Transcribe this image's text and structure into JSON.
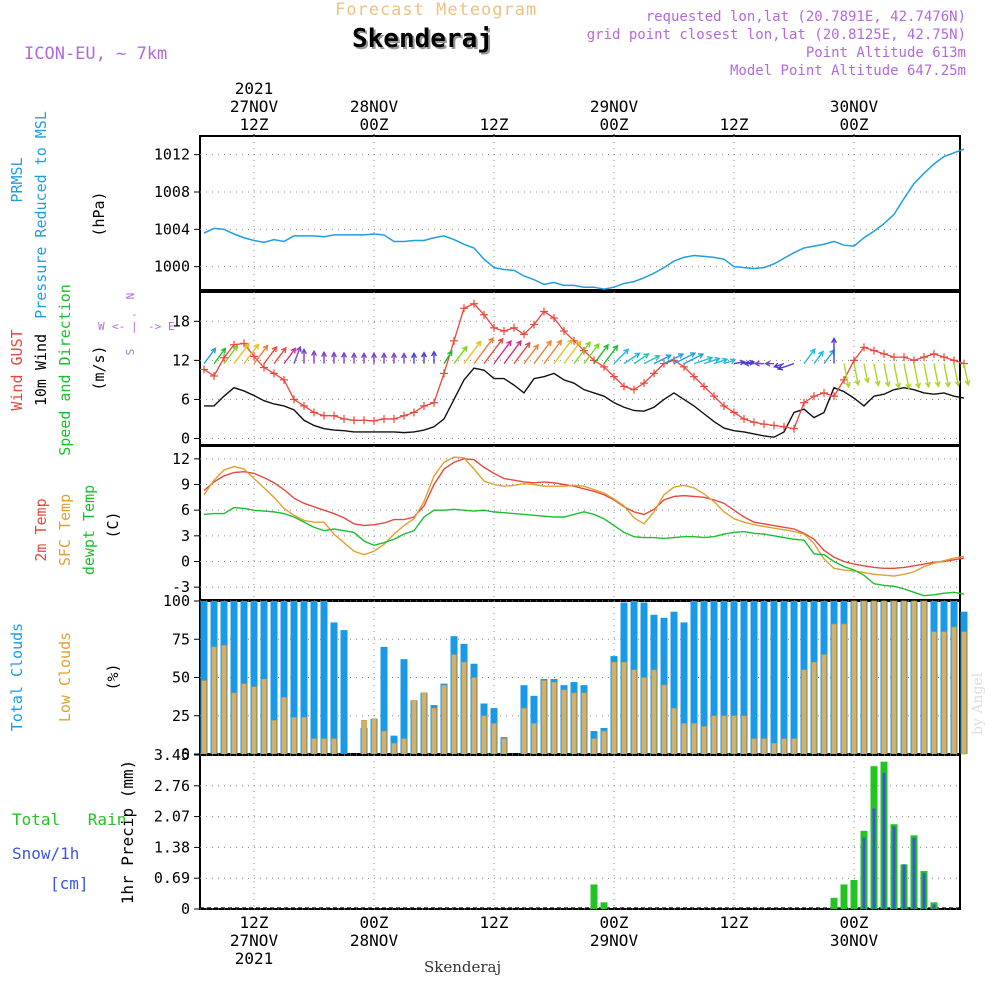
{
  "colors": {
    "frame": "#000000",
    "grid": "#888888",
    "pressure": "#1f9ee0",
    "gust": "#e8483e",
    "wind": "#111111",
    "temp2m": "#e8483e",
    "sfc": "#e0a030",
    "dewpt": "#19c02c",
    "total_clouds": "#1a9ae6",
    "low_clouds": "#d0b070",
    "low_clouds_edge": "#c09030",
    "rain": "#22c422",
    "snow": "#3c56d8",
    "title_orange": "#f0c080",
    "purple": "#b36ad9"
  },
  "header": {
    "title_small": "Forecast Meteogram",
    "title": "Skenderaj",
    "model": "ICON-EU, ~ 7km",
    "info": [
      "requested lon,lat (20.7891E, 42.7476N)",
      "grid point closest lon,lat (20.8125E, 42.75N)",
      "Point Altitude 613m",
      "Model Point Altitude 647.25m"
    ],
    "watermark": "by Angel",
    "footer": "Skenderaj"
  },
  "chart_data": [
    {
      "id": "pressure",
      "type": "line",
      "title": "PRMSL Pressure Reduced to MSL",
      "label_lines": [
        "PRMSL",
        "Pressure Reduced to MSL"
      ],
      "unit": "(hPa)",
      "ylim": [
        997.5,
        1014
      ],
      "yticks": [
        1000,
        1004,
        1008,
        1012
      ],
      "x_hours": [
        0,
        1,
        2,
        3,
        4,
        5,
        6,
        7,
        8,
        9,
        10,
        11,
        12,
        13,
        14,
        15,
        16,
        17,
        18,
        19,
        20,
        21,
        22,
        23,
        24,
        25,
        26,
        27,
        28,
        29,
        30,
        31,
        32,
        33,
        34,
        35,
        36,
        37,
        38,
        39,
        40,
        41,
        42,
        43,
        44,
        45,
        46,
        47,
        48,
        49,
        50,
        51,
        52,
        53,
        54,
        55,
        56,
        57,
        58,
        59,
        60,
        61,
        62,
        63,
        64,
        65,
        66,
        67,
        68,
        69,
        70,
        71,
        72,
        73,
        74,
        75,
        76
      ],
      "values": [
        1003.6,
        1004.1,
        1004.0,
        1003.5,
        1003.1,
        1002.8,
        1002.6,
        1002.9,
        1002.7,
        1003.3,
        1003.3,
        1003.3,
        1003.2,
        1003.4,
        1003.4,
        1003.4,
        1003.4,
        1003.5,
        1003.4,
        1002.7,
        1002.7,
        1002.8,
        1002.8,
        1003.1,
        1003.3,
        1002.9,
        1002.4,
        1002.0,
        1000.8,
        999.9,
        999.7,
        999.6,
        999.0,
        998.6,
        998.1,
        998.3,
        998.0,
        998.0,
        997.8,
        997.8,
        997.6,
        997.8,
        998.2,
        998.4,
        998.8,
        999.3,
        999.9,
        1000.6,
        1001.0,
        1001.2,
        1001.1,
        1001.0,
        1000.8,
        1000.0,
        999.9,
        999.8,
        999.9,
        1000.3,
        1000.9,
        1001.5,
        1002.0,
        1002.2,
        1002.4,
        1002.7,
        1002.3,
        1002.2,
        1003.1,
        1003.8,
        1004.6,
        1005.6,
        1007.3,
        1008.9,
        1010.0,
        1011.0,
        1011.8,
        1012.2,
        1012.6
      ]
    },
    {
      "id": "wind",
      "type": "line",
      "title": "Wind GUST / 10m Wind Speed and Direction",
      "label_lines": [
        "Wind GUST",
        "10m Wind",
        "Speed and Direction"
      ],
      "unit": "(m/s)",
      "compass": [
        "N",
        "W",
        "E",
        "S"
      ],
      "compass_arrows": [
        "<-",
        "->",
        "|",
        "-"
      ],
      "ylim": [
        -1,
        22.5
      ],
      "yticks": [
        0,
        6,
        12,
        18
      ],
      "x_hours": [
        0,
        1,
        2,
        3,
        4,
        5,
        6,
        7,
        8,
        9,
        10,
        11,
        12,
        13,
        14,
        15,
        16,
        17,
        18,
        19,
        20,
        21,
        22,
        23,
        24,
        25,
        26,
        27,
        28,
        29,
        30,
        31,
        32,
        33,
        34,
        35,
        36,
        37,
        38,
        39,
        40,
        41,
        42,
        43,
        44,
        45,
        46,
        47,
        48,
        49,
        50,
        51,
        52,
        53,
        54,
        55,
        56,
        57,
        58,
        59,
        60,
        61,
        62,
        63,
        64,
        65,
        66,
        67,
        68,
        69,
        70,
        71,
        72,
        73,
        74,
        75,
        76
      ],
      "gust": [
        10.6,
        9.6,
        12.4,
        14.4,
        14.6,
        12.6,
        10.9,
        10.0,
        9.0,
        6.0,
        5.0,
        4.0,
        3.5,
        3.5,
        3.0,
        2.8,
        2.8,
        2.7,
        3.0,
        3.0,
        3.5,
        4.0,
        5.0,
        5.5,
        10.0,
        15.0,
        20.0,
        20.7,
        19.0,
        17.0,
        16.5,
        17.0,
        16.0,
        17.5,
        19.5,
        18.5,
        16.5,
        15.0,
        13.5,
        12.0,
        11.0,
        9.5,
        8.0,
        7.5,
        8.5,
        10.0,
        11.5,
        12.0,
        11.0,
        9.5,
        8.0,
        6.5,
        5.0,
        4.0,
        3.0,
        2.5,
        2.2,
        2.0,
        1.8,
        1.5,
        5.5,
        6.5,
        7.0,
        6.5,
        9.0,
        12.0,
        14.0,
        13.5,
        13.0,
        12.5,
        12.5,
        12.0,
        12.5,
        13.0,
        12.5,
        12.0,
        11.5
      ],
      "wind": [
        5.0,
        5.0,
        6.5,
        7.8,
        7.3,
        6.6,
        5.8,
        5.3,
        5.0,
        4.4,
        2.8,
        2.0,
        1.5,
        1.3,
        1.2,
        1.0,
        1.0,
        1.0,
        1.0,
        1.0,
        0.9,
        1.0,
        1.3,
        1.8,
        3.0,
        6.0,
        9.0,
        10.8,
        10.5,
        9.2,
        9.2,
        8.2,
        7.0,
        9.2,
        9.5,
        10.0,
        9.0,
        8.5,
        7.5,
        7.0,
        6.5,
        5.5,
        4.8,
        4.3,
        4.2,
        4.8,
        6.0,
        7.0,
        6.0,
        5.0,
        3.8,
        2.6,
        1.6,
        1.2,
        1.0,
        0.7,
        0.4,
        0.2,
        1.0,
        4.0,
        4.5,
        3.2,
        4.0,
        7.8,
        7.2,
        6.2,
        5.0,
        6.5,
        6.8,
        7.5,
        7.8,
        7.5,
        7.0,
        6.8,
        7.0,
        6.5,
        6.2
      ],
      "direction_palette": [
        "#1f9ee0",
        "#19c02c",
        "#7ed321",
        "#e8c020",
        "#f08030",
        "#e8483e",
        "#d0308a",
        "#7b3fd0",
        "#4b3bd8",
        "#22b8e0",
        "#1ec8b0",
        "#a8d820"
      ],
      "arrow_dx": [
        0.6,
        0.6,
        0.6,
        0.6,
        0.6,
        0.6,
        0.6,
        0.6,
        0.6,
        0.3,
        0,
        0,
        0,
        0,
        0,
        0,
        0,
        0,
        0,
        0,
        0,
        0,
        0,
        0,
        0.5,
        0.6,
        0.6,
        0.6,
        0.6,
        0.6,
        0.6,
        0.6,
        0.6,
        0.6,
        0.6,
        0.6,
        0.6,
        0.6,
        0.6,
        0.6,
        0.6,
        0.6,
        0.6,
        0.6,
        0.6,
        0.6,
        0.6,
        0.6,
        0.6,
        0.6,
        0.6,
        0.6,
        0.6,
        0.6,
        0.6,
        -0.6,
        -0.6,
        -0.6,
        -0.6,
        -0.6,
        0.6,
        0.6,
        0.6,
        0,
        0.2,
        0.2,
        0.2,
        0.2,
        0.2,
        0.2,
        0.2,
        0.2,
        0.2,
        0.2,
        0.2,
        0.2,
        0.2
      ],
      "arrow_dy": [
        0.8,
        0.8,
        0.8,
        0.8,
        0.8,
        0.8,
        0.8,
        0.8,
        0.8,
        0.8,
        1,
        1,
        1,
        1,
        1,
        1,
        1,
        1,
        1,
        1,
        1,
        1,
        1,
        1,
        0.8,
        0.8,
        0.8,
        0.8,
        0.8,
        0.8,
        0.8,
        0.8,
        0.8,
        0.8,
        0.8,
        0.8,
        0.8,
        0.8,
        0.8,
        0.8,
        0.8,
        0.6,
        0.4,
        0.4,
        0.3,
        0.3,
        0.3,
        0.3,
        0.3,
        0.2,
        0.2,
        0.2,
        0.2,
        0.1,
        0.1,
        0,
        0,
        0,
        -0.2,
        -0.2,
        0.8,
        0.8,
        0.8,
        1,
        -1,
        -1,
        -1,
        -1,
        -1,
        -1,
        -1,
        -1,
        -1,
        -1,
        -1,
        -1,
        -1
      ],
      "arrow_color": [
        0,
        1,
        2,
        3,
        3,
        4,
        5,
        5,
        6,
        7,
        7,
        7,
        7,
        7,
        7,
        7,
        7,
        7,
        7,
        7,
        7,
        8,
        8,
        8,
        1,
        2,
        3,
        4,
        5,
        6,
        6,
        5,
        4,
        4,
        4,
        3,
        3,
        2,
        2,
        1,
        1,
        9,
        9,
        10,
        10,
        0,
        0,
        0,
        0,
        9,
        9,
        9,
        9,
        8,
        8,
        8,
        7,
        7,
        8,
        8,
        9,
        9,
        0,
        8,
        11,
        11,
        11,
        11,
        11,
        11,
        11,
        11,
        11,
        11,
        11,
        11,
        11
      ]
    },
    {
      "id": "temp",
      "type": "line",
      "title": "2m Temp / SFC Temp / dewpt Temp",
      "label_lines": [
        "2m Temp",
        "SFC Temp",
        "dewpt Temp"
      ],
      "unit": "(C)",
      "ylim": [
        -4.5,
        13.5
      ],
      "yticks": [
        -3,
        0,
        3,
        6,
        9,
        12
      ],
      "x_hours": [
        0,
        1,
        2,
        3,
        4,
        5,
        6,
        7,
        8,
        9,
        10,
        11,
        12,
        13,
        14,
        15,
        16,
        17,
        18,
        19,
        20,
        21,
        22,
        23,
        24,
        25,
        26,
        27,
        28,
        29,
        30,
        31,
        32,
        33,
        34,
        35,
        36,
        37,
        38,
        39,
        40,
        41,
        42,
        43,
        44,
        45,
        46,
        47,
        48,
        49,
        50,
        51,
        52,
        53,
        54,
        55,
        56,
        57,
        58,
        59,
        60,
        61,
        62,
        63,
        64,
        65,
        66,
        67,
        68,
        69,
        70,
        71,
        72,
        73,
        74,
        75,
        76
      ],
      "t2m": [
        8.3,
        9.3,
        10.0,
        10.4,
        10.5,
        10.3,
        9.8,
        9.2,
        8.4,
        7.4,
        6.8,
        6.4,
        6.0,
        5.6,
        5.1,
        4.4,
        4.2,
        4.3,
        4.5,
        4.9,
        4.9,
        5.2,
        6.5,
        9.0,
        10.8,
        11.6,
        12.0,
        11.9,
        11.0,
        10.3,
        9.7,
        9.5,
        9.3,
        9.2,
        9.3,
        9.2,
        9.0,
        8.8,
        8.5,
        8.2,
        7.8,
        7.2,
        6.4,
        5.8,
        5.5,
        6.1,
        7.2,
        7.6,
        7.7,
        7.6,
        7.5,
        7.2,
        6.8,
        6.0,
        5.2,
        4.6,
        4.4,
        4.2,
        4.0,
        3.8,
        3.3,
        2.6,
        1.3,
        0.5,
        0.0,
        -0.3,
        -0.5,
        -0.7,
        -0.8,
        -0.8,
        -0.7,
        -0.5,
        -0.3,
        -0.1,
        0.0,
        0.2,
        0.4
      ],
      "sfc": [
        7.8,
        9.5,
        10.7,
        11.1,
        10.8,
        9.7,
        8.6,
        7.5,
        6.2,
        5.4,
        4.8,
        4.6,
        4.6,
        3.2,
        2.2,
        1.2,
        0.8,
        1.2,
        2.0,
        3.2,
        4.2,
        5.0,
        7.0,
        10.0,
        11.6,
        12.2,
        12.1,
        10.8,
        9.4,
        9.0,
        8.8,
        8.9,
        9.1,
        9.0,
        8.8,
        8.8,
        8.8,
        8.9,
        8.8,
        8.4,
        8.0,
        7.3,
        6.5,
        5.1,
        4.4,
        5.8,
        7.8,
        8.7,
        8.9,
        8.6,
        7.9,
        7.0,
        5.8,
        5.0,
        4.6,
        4.3,
        4.1,
        3.9,
        3.7,
        3.5,
        3.2,
        2.1,
        0.3,
        -0.8,
        -1.0,
        -1.1,
        -1.3,
        -1.5,
        -1.6,
        -1.7,
        -1.5,
        -1.2,
        -0.6,
        -0.2,
        0.1,
        0.4,
        0.6
      ],
      "dewpt": [
        5.5,
        5.6,
        5.6,
        6.3,
        6.2,
        6.0,
        5.9,
        5.8,
        5.6,
        5.2,
        4.6,
        4.0,
        3.6,
        3.8,
        3.6,
        3.4,
        2.4,
        1.9,
        2.2,
        2.6,
        3.2,
        3.6,
        5.2,
        6.0,
        6.0,
        6.1,
        6.0,
        5.9,
        6.0,
        5.8,
        5.7,
        5.6,
        5.5,
        5.4,
        5.3,
        5.2,
        5.2,
        5.5,
        5.8,
        5.5,
        5.0,
        4.2,
        3.4,
        2.9,
        2.8,
        2.8,
        2.7,
        2.8,
        2.9,
        2.9,
        2.8,
        2.9,
        3.2,
        3.4,
        3.5,
        3.3,
        3.2,
        3.0,
        2.8,
        2.6,
        2.5,
        0.9,
        0.8,
        0.0,
        -0.6,
        -1.0,
        -1.6,
        -2.6,
        -2.8,
        -2.9,
        -3.2,
        -3.6,
        -4.0,
        -3.9,
        -3.7,
        -3.6,
        -3.8
      ]
    },
    {
      "id": "clouds",
      "type": "bar",
      "title": "Total Clouds / Low Clouds",
      "label_lines": [
        "Total Clouds",
        "Low Clouds"
      ],
      "unit": "(%)",
      "ylim": [
        0,
        100
      ],
      "yticks": [
        0,
        25,
        50,
        75,
        100
      ],
      "x_hours": [
        0,
        1,
        2,
        3,
        4,
        5,
        6,
        7,
        8,
        9,
        10,
        11,
        12,
        13,
        14,
        15,
        16,
        17,
        18,
        19,
        20,
        21,
        22,
        23,
        24,
        25,
        26,
        27,
        28,
        29,
        30,
        31,
        32,
        33,
        34,
        35,
        36,
        37,
        38,
        39,
        40,
        41,
        42,
        43,
        44,
        45,
        46,
        47,
        48,
        49,
        50,
        51,
        52,
        53,
        54,
        55,
        56,
        57,
        58,
        59,
        60,
        61,
        62,
        63,
        64,
        65,
        66,
        67,
        68,
        69,
        70,
        71,
        72,
        73,
        74,
        75,
        76
      ],
      "total": [
        100,
        100,
        100,
        100,
        100,
        100,
        100,
        100,
        100,
        100,
        100,
        100,
        100,
        86,
        81,
        0,
        17,
        23,
        70,
        12,
        62,
        35,
        40,
        32,
        46,
        77,
        72,
        59,
        33,
        30,
        11,
        0,
        45,
        38,
        49,
        49,
        45,
        47,
        45,
        15,
        17,
        64,
        99,
        100,
        99,
        91,
        89,
        93,
        86,
        100,
        100,
        100,
        100,
        100,
        100,
        100,
        100,
        100,
        100,
        100,
        100,
        100,
        100,
        100,
        100,
        100,
        100,
        100,
        100,
        100,
        100,
        100,
        100,
        100,
        100,
        100,
        93
      ],
      "low": [
        48,
        70,
        71,
        40,
        46,
        44,
        49,
        22,
        37,
        24,
        24,
        10,
        10,
        10,
        0,
        0,
        22,
        23,
        15,
        7,
        10,
        35,
        40,
        30,
        45,
        65,
        60,
        50,
        25,
        20,
        10,
        0,
        30,
        20,
        48,
        47,
        42,
        40,
        40,
        10,
        15,
        60,
        60,
        55,
        50,
        55,
        45,
        30,
        20,
        20,
        18,
        25,
        25,
        25,
        25,
        10,
        10,
        7,
        10,
        10,
        55,
        60,
        65,
        85,
        85,
        100,
        100,
        100,
        100,
        100,
        100,
        100,
        100,
        80,
        80,
        83,
        80
      ]
    },
    {
      "id": "precip",
      "type": "bar",
      "title": "1hr Precip (mm)",
      "label_lines": [
        "Total Rain",
        "Snow/1h",
        "[cm]"
      ],
      "unit": "1hr Precip (mm)",
      "ylim": [
        0,
        3.45
      ],
      "yticks": [
        0,
        0.69,
        1.38,
        2.07,
        2.76,
        3.45
      ],
      "x_hours": [
        39,
        40,
        63,
        64,
        65,
        66,
        67,
        68,
        69,
        70,
        71,
        72,
        73,
        74,
        75
      ],
      "rain": [
        0.55,
        0.15,
        0.25,
        0.55,
        0.65,
        1.75,
        3.2,
        3.3,
        1.9,
        1.0,
        1.65,
        0.85,
        0.15,
        0.0,
        0.0
      ],
      "snow": [
        0,
        0,
        0,
        0,
        0,
        1.6,
        2.25,
        3.05,
        1.85,
        1.0,
        1.6,
        0.8,
        0.1,
        0,
        0
      ]
    }
  ],
  "time_axis": {
    "hours_per_step": 1,
    "total_hours": 76,
    "top_labels": [
      {
        "hour": 5,
        "lines": [
          "2021",
          "27NOV",
          "12Z"
        ]
      },
      {
        "hour": 17,
        "lines": [
          "28NOV",
          "00Z"
        ]
      },
      {
        "hour": 29,
        "lines": [
          "12Z"
        ]
      },
      {
        "hour": 41,
        "lines": [
          "29NOV",
          "00Z"
        ]
      },
      {
        "hour": 53,
        "lines": [
          "12Z"
        ]
      },
      {
        "hour": 65,
        "lines": [
          "30NOV",
          "00Z"
        ]
      }
    ],
    "bottom_labels": [
      {
        "hour": 5,
        "lines": [
          "12Z",
          "27NOV",
          "2021"
        ]
      },
      {
        "hour": 17,
        "lines": [
          "00Z",
          "28NOV"
        ]
      },
      {
        "hour": 29,
        "lines": [
          "12Z"
        ]
      },
      {
        "hour": 41,
        "lines": [
          "00Z",
          "29NOV"
        ]
      },
      {
        "hour": 53,
        "lines": [
          "12Z"
        ]
      },
      {
        "hour": 65,
        "lines": [
          "00Z",
          "30NOV"
        ]
      }
    ]
  }
}
